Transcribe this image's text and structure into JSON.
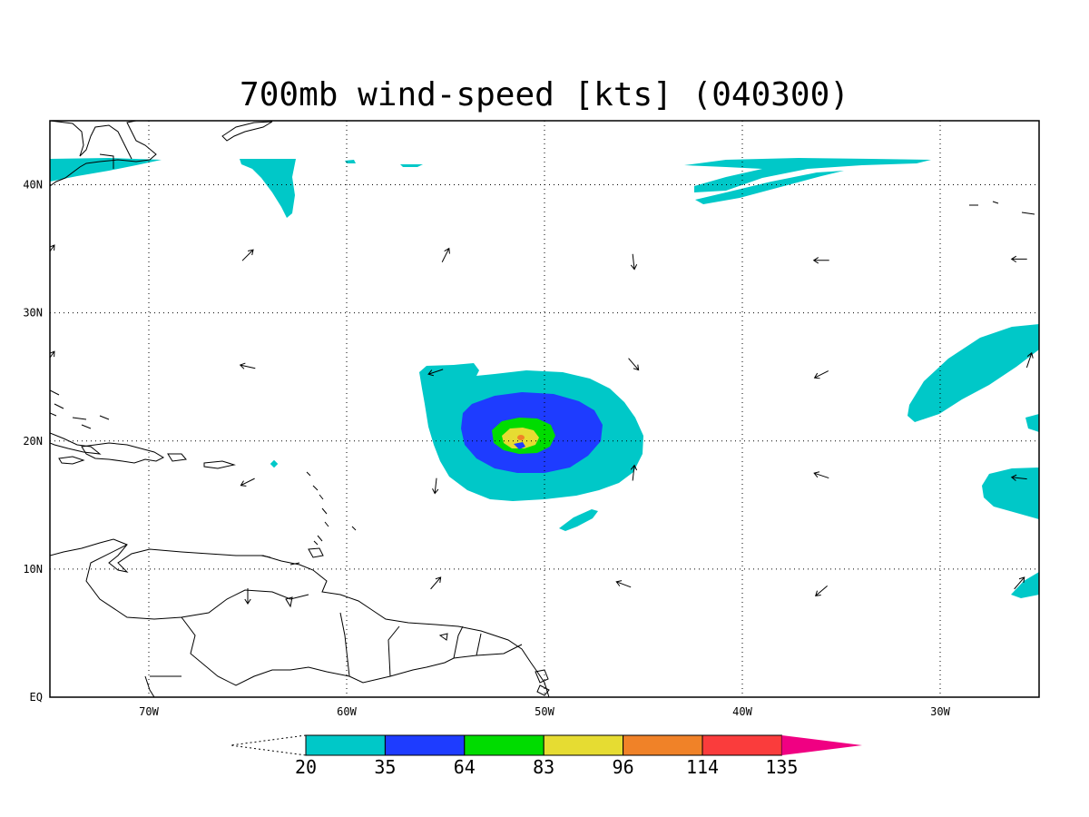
{
  "title": "700mb wind-speed [kts] (040300)",
  "map": {
    "lon_range": [
      -75,
      -25
    ],
    "lat_range": [
      0,
      45
    ],
    "lon_ticks": [
      {
        "value": -70,
        "label": "70W"
      },
      {
        "value": -60,
        "label": "60W"
      },
      {
        "value": -50,
        "label": "50W"
      },
      {
        "value": -40,
        "label": "40W"
      },
      {
        "value": -30,
        "label": "30W"
      }
    ],
    "lat_ticks": [
      {
        "value": 0,
        "label": "EQ"
      },
      {
        "value": 10,
        "label": "10N"
      },
      {
        "value": 20,
        "label": "20N"
      },
      {
        "value": 30,
        "label": "30N"
      },
      {
        "value": 40,
        "label": "40N"
      }
    ],
    "grid_lines": "dotted"
  },
  "colorbar": {
    "levels": [
      "20",
      "35",
      "64",
      "83",
      "96",
      "114",
      "135"
    ],
    "colors": [
      "#00c8c8",
      "#1e3cff",
      "#00dc00",
      "#e6dc32",
      "#f08228",
      "#fa3c3c",
      "#f00082"
    ],
    "below_color": "#ffffff"
  },
  "wind_speed_contours": [
    {
      "name": "hurricane-core",
      "center_lon": -51.0,
      "center_lat": 20.2,
      "max_level_kts": 96
    },
    {
      "name": "northeast-jet-streak",
      "center_lon": -36.0,
      "center_lat": 40.5,
      "max_level_kts": 20
    },
    {
      "name": "northwest-jet",
      "center_lon": -73.0,
      "center_lat": 41.2,
      "max_level_kts": 20
    },
    {
      "name": "east-trough-band",
      "center_lon": -28.5,
      "center_lat": 25.5,
      "max_level_kts": 20
    },
    {
      "name": "southeast-band",
      "center_lon": -26.5,
      "center_lat": 16.5,
      "max_level_kts": 20
    }
  ],
  "wind_vectors": [
    {
      "lon": -75.0,
      "lat": 34.8,
      "u": 0.5,
      "v": 0.7
    },
    {
      "lon": -65.0,
      "lat": 34.5,
      "u": 0.6,
      "v": 0.6
    },
    {
      "lon": -55.0,
      "lat": 34.5,
      "u": 0.4,
      "v": 0.8
    },
    {
      "lon": -45.5,
      "lat": 34.0,
      "u": 0.1,
      "v": -0.9
    },
    {
      "lon": -36.0,
      "lat": 34.1,
      "u": -0.9,
      "v": 0.0
    },
    {
      "lon": -26.0,
      "lat": 34.2,
      "u": -0.9,
      "v": 0.0
    },
    {
      "lon": -75.0,
      "lat": 26.5,
      "u": 0.5,
      "v": 0.7
    },
    {
      "lon": -65.0,
      "lat": 25.8,
      "u": -0.9,
      "v": 0.2
    },
    {
      "lon": -55.5,
      "lat": 25.4,
      "u": -0.9,
      "v": -0.3
    },
    {
      "lon": -45.5,
      "lat": 26.0,
      "u": 0.6,
      "v": -0.7
    },
    {
      "lon": -36.0,
      "lat": 25.2,
      "u": -0.8,
      "v": -0.4
    },
    {
      "lon": -25.5,
      "lat": 26.3,
      "u": 0.3,
      "v": 0.9
    },
    {
      "lon": -65.0,
      "lat": 16.8,
      "u": -0.8,
      "v": -0.4
    },
    {
      "lon": -55.5,
      "lat": 16.5,
      "u": -0.1,
      "v": -0.9
    },
    {
      "lon": -45.5,
      "lat": 17.5,
      "u": 0.1,
      "v": 0.9
    },
    {
      "lon": -36.0,
      "lat": 17.3,
      "u": -0.9,
      "v": 0.3
    },
    {
      "lon": -26.0,
      "lat": 17.1,
      "u": -0.9,
      "v": 0.1
    },
    {
      "lon": -65.0,
      "lat": 7.9,
      "u": 0.0,
      "v": -0.9
    },
    {
      "lon": -55.5,
      "lat": 8.9,
      "u": 0.6,
      "v": 0.7
    },
    {
      "lon": -46.0,
      "lat": 8.8,
      "u": -0.8,
      "v": 0.3
    },
    {
      "lon": -36.0,
      "lat": 8.3,
      "u": -0.7,
      "v": -0.6
    },
    {
      "lon": -26.0,
      "lat": 8.9,
      "u": 0.6,
      "v": 0.7
    }
  ]
}
